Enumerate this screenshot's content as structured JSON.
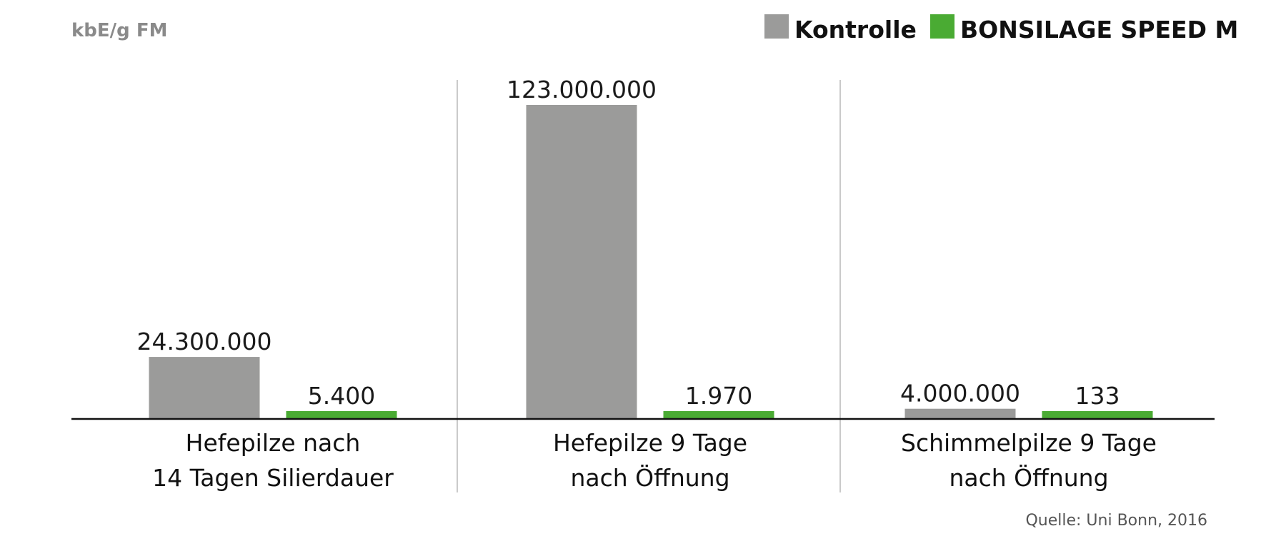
{
  "chart_data": {
    "type": "bar",
    "ylabel": "kbE/g FM",
    "categories": [
      [
        "Hefepilze nach",
        "14 Tagen Silierdauer"
      ],
      [
        "Hefepilze 9 Tage",
        "nach Öffnung"
      ],
      [
        "Schimmelpilze 9 Tage",
        "nach Öffnung"
      ]
    ],
    "series": [
      {
        "name": "Kontrolle",
        "color": "#9b9b9a",
        "values": [
          24300000,
          123000000,
          4000000
        ],
        "labels": [
          "24.300.000",
          "123.000.000",
          "4.000.000"
        ]
      },
      {
        "name": "BONSILAGE SPEED M",
        "color": "#4aab33",
        "values": [
          5400,
          1970,
          133
        ],
        "labels": [
          "5.400",
          "1.970",
          "133"
        ]
      }
    ],
    "grid": false,
    "legend_position": "top-right",
    "source": "Quelle: Uni Bonn, 2016"
  }
}
